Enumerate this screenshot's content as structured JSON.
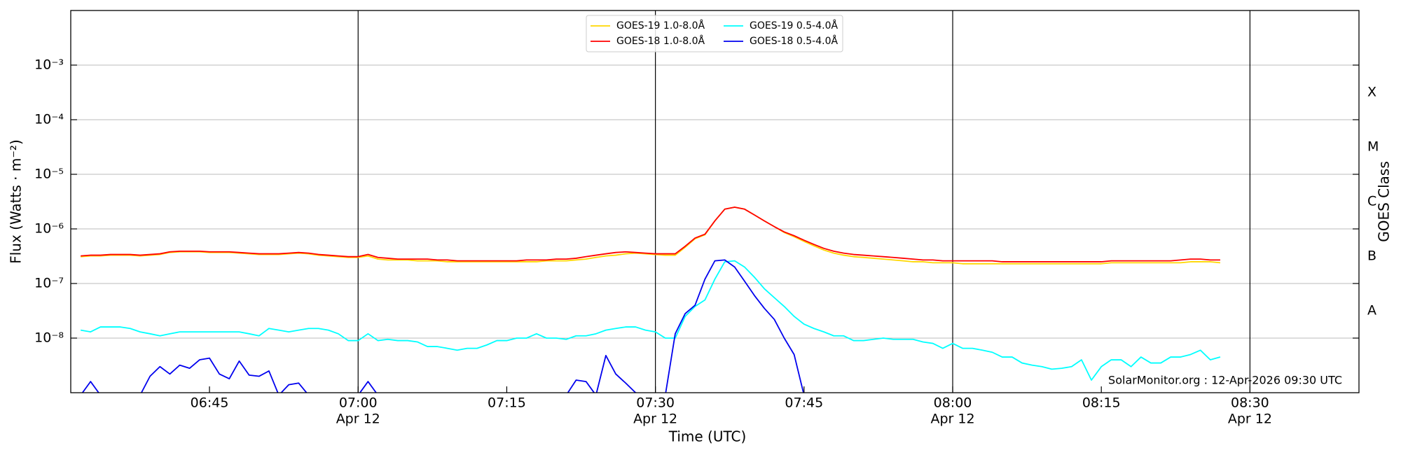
{
  "chart_data": {
    "type": "line",
    "xlabel": "Time (UTC)",
    "ylabel": "Flux (Watts · m⁻²)",
    "y2label": "GOES Class",
    "annotation": "SolarMonitor.org : 12-Apr-2026 09:30 UTC",
    "yscale": "log",
    "grid": true,
    "legend": "upper center",
    "xlim": [
      "06:31",
      "08:41"
    ],
    "xticks": [
      {
        "value": "06:45",
        "label": "06:45"
      },
      {
        "value": "07:00",
        "label": "07:00",
        "sublabel": "Apr 12"
      },
      {
        "value": "07:15",
        "label": "07:15"
      },
      {
        "value": "07:30",
        "label": "07:30",
        "sublabel": "Apr 12"
      },
      {
        "value": "07:45",
        "label": "07:45"
      },
      {
        "value": "08:00",
        "label": "08:00",
        "sublabel": "Apr 12"
      },
      {
        "value": "08:15",
        "label": "08:15"
      },
      {
        "value": "08:30",
        "label": "08:30",
        "sublabel": "Apr 12"
      }
    ],
    "ylim": [
      1e-09,
      0.01
    ],
    "yticks": [
      {
        "value": 1e-08,
        "label": "10⁻⁸"
      },
      {
        "value": 1e-07,
        "label": "10⁻⁷"
      },
      {
        "value": 1e-06,
        "label": "10⁻⁶"
      },
      {
        "value": 1e-05,
        "label": "10⁻⁵"
      },
      {
        "value": 0.0001,
        "label": "10⁻⁴"
      },
      {
        "value": 0.001,
        "label": "10⁻³"
      }
    ],
    "y2lim": [
      1e-09,
      0.01
    ],
    "y2ticks": [
      {
        "value": 3.16e-08,
        "label": "A"
      },
      {
        "value": 3.16e-07,
        "label": "B"
      },
      {
        "value": 3.16e-06,
        "label": "C"
      },
      {
        "value": 3.16e-05,
        "label": "M"
      },
      {
        "value": 0.000316,
        "label": "X"
      }
    ],
    "x": [
      "06:32",
      "06:33",
      "06:34",
      "06:35",
      "06:36",
      "06:37",
      "06:38",
      "06:39",
      "06:40",
      "06:41",
      "06:42",
      "06:43",
      "06:44",
      "06:45",
      "06:46",
      "06:47",
      "06:48",
      "06:49",
      "06:50",
      "06:51",
      "06:52",
      "06:53",
      "06:54",
      "06:55",
      "06:56",
      "06:57",
      "06:58",
      "06:59",
      "07:00",
      "07:01",
      "07:02",
      "07:03",
      "07:04",
      "07:05",
      "07:06",
      "07:07",
      "07:08",
      "07:09",
      "07:10",
      "07:11",
      "07:12",
      "07:13",
      "07:14",
      "07:15",
      "07:16",
      "07:17",
      "07:18",
      "07:19",
      "07:20",
      "07:21",
      "07:22",
      "07:23",
      "07:24",
      "07:25",
      "07:26",
      "07:27",
      "07:28",
      "07:29",
      "07:30",
      "07:31",
      "07:32",
      "07:33",
      "07:34",
      "07:35",
      "07:36",
      "07:37",
      "07:38",
      "07:39",
      "07:40",
      "07:41",
      "07:42",
      "07:43",
      "07:44",
      "07:45",
      "07:46",
      "07:47",
      "07:48",
      "07:49",
      "07:50",
      "07:51",
      "07:52",
      "07:53",
      "07:54",
      "07:55",
      "07:56",
      "07:57",
      "07:58",
      "07:59",
      "08:00",
      "08:01",
      "08:02",
      "08:03",
      "08:04",
      "08:05",
      "08:06",
      "08:07",
      "08:08",
      "08:09",
      "08:10",
      "08:11",
      "08:12",
      "08:13",
      "08:14",
      "08:15",
      "08:16",
      "08:17",
      "08:18",
      "08:19",
      "08:20",
      "08:21",
      "08:22",
      "08:23",
      "08:24",
      "08:25",
      "08:26",
      "08:27"
    ],
    "series": [
      {
        "name": "GOES-19 1.0-8.0Å",
        "color": "#ffd700",
        "values": [
          3.1e-07,
          3.2e-07,
          3.2e-07,
          3.3e-07,
          3.3e-07,
          3.3e-07,
          3.2e-07,
          3.3e-07,
          3.4e-07,
          3.7e-07,
          3.8e-07,
          3.8e-07,
          3.8e-07,
          3.7e-07,
          3.7e-07,
          3.7e-07,
          3.6e-07,
          3.5e-07,
          3.4e-07,
          3.4e-07,
          3.4e-07,
          3.5e-07,
          3.6e-07,
          3.5e-07,
          3.3e-07,
          3.2e-07,
          3.1e-07,
          3e-07,
          3e-07,
          3.2e-07,
          2.8e-07,
          2.7e-07,
          2.7e-07,
          2.7e-07,
          2.6e-07,
          2.6e-07,
          2.6e-07,
          2.5e-07,
          2.5e-07,
          2.5e-07,
          2.5e-07,
          2.5e-07,
          2.5e-07,
          2.5e-07,
          2.5e-07,
          2.5e-07,
          2.5e-07,
          2.6e-07,
          2.6e-07,
          2.6e-07,
          2.7e-07,
          2.8e-07,
          3e-07,
          3.2e-07,
          3.3e-07,
          3.5e-07,
          3.6e-07,
          3.5e-07,
          3.4e-07,
          3.3e-07,
          3.3e-07,
          4.6e-07,
          6.6e-07,
          7.8e-07,
          1.4e-06,
          2.3e-06,
          2.5e-06,
          2.3e-06,
          1.8e-06,
          1.4e-06,
          1.1e-06,
          8.6e-07,
          7.2e-07,
          5.9e-07,
          4.9e-07,
          4.1e-07,
          3.6e-07,
          3.3e-07,
          3.1e-07,
          3e-07,
          2.9e-07,
          2.8e-07,
          2.7e-07,
          2.6e-07,
          2.5e-07,
          2.5e-07,
          2.4e-07,
          2.4e-07,
          2.4e-07,
          2.3e-07,
          2.3e-07,
          2.3e-07,
          2.3e-07,
          2.3e-07,
          2.3e-07,
          2.3e-07,
          2.3e-07,
          2.3e-07,
          2.3e-07,
          2.3e-07,
          2.3e-07,
          2.3e-07,
          2.3e-07,
          2.3e-07,
          2.4e-07,
          2.4e-07,
          2.4e-07,
          2.4e-07,
          2.4e-07,
          2.4e-07,
          2.4e-07,
          2.4e-07,
          2.5e-07,
          2.5e-07,
          2.5e-07,
          2.4e-07
        ]
      },
      {
        "name": "GOES-18 1.0-8.0Å",
        "color": "#ff0000",
        "values": [
          3.2e-07,
          3.3e-07,
          3.3e-07,
          3.4e-07,
          3.4e-07,
          3.4e-07,
          3.3e-07,
          3.4e-07,
          3.5e-07,
          3.8e-07,
          3.9e-07,
          3.9e-07,
          3.9e-07,
          3.8e-07,
          3.8e-07,
          3.8e-07,
          3.7e-07,
          3.6e-07,
          3.5e-07,
          3.5e-07,
          3.5e-07,
          3.6e-07,
          3.7e-07,
          3.6e-07,
          3.4e-07,
          3.3e-07,
          3.2e-07,
          3.1e-07,
          3.1e-07,
          3.4e-07,
          3e-07,
          2.9e-07,
          2.8e-07,
          2.8e-07,
          2.8e-07,
          2.8e-07,
          2.7e-07,
          2.7e-07,
          2.6e-07,
          2.6e-07,
          2.6e-07,
          2.6e-07,
          2.6e-07,
          2.6e-07,
          2.6e-07,
          2.7e-07,
          2.7e-07,
          2.7e-07,
          2.8e-07,
          2.8e-07,
          2.9e-07,
          3.1e-07,
          3.3e-07,
          3.5e-07,
          3.7e-07,
          3.8e-07,
          3.7e-07,
          3.6e-07,
          3.5e-07,
          3.5e-07,
          3.5e-07,
          4.8e-07,
          6.8e-07,
          8e-07,
          1.4e-06,
          2.3e-06,
          2.5e-06,
          2.3e-06,
          1.8e-06,
          1.4e-06,
          1.1e-06,
          8.8e-07,
          7.5e-07,
          6.2e-07,
          5.2e-07,
          4.4e-07,
          3.9e-07,
          3.6e-07,
          3.4e-07,
          3.3e-07,
          3.2e-07,
          3.1e-07,
          3e-07,
          2.9e-07,
          2.8e-07,
          2.7e-07,
          2.7e-07,
          2.6e-07,
          2.6e-07,
          2.6e-07,
          2.6e-07,
          2.6e-07,
          2.6e-07,
          2.5e-07,
          2.5e-07,
          2.5e-07,
          2.5e-07,
          2.5e-07,
          2.5e-07,
          2.5e-07,
          2.5e-07,
          2.5e-07,
          2.5e-07,
          2.5e-07,
          2.6e-07,
          2.6e-07,
          2.6e-07,
          2.6e-07,
          2.6e-07,
          2.6e-07,
          2.6e-07,
          2.7e-07,
          2.8e-07,
          2.8e-07,
          2.7e-07,
          2.7e-07
        ]
      },
      {
        "name": "GOES-19 0.5-4.0Å",
        "color": "#00ffff",
        "values": [
          1.4e-08,
          1.3e-08,
          1.6e-08,
          1.6e-08,
          1.6e-08,
          1.5e-08,
          1.3e-08,
          1.2e-08,
          1.1e-08,
          1.2e-08,
          1.3e-08,
          1.3e-08,
          1.3e-08,
          1.3e-08,
          1.3e-08,
          1.3e-08,
          1.3e-08,
          1.2e-08,
          1.1e-08,
          1.5e-08,
          1.4e-08,
          1.3e-08,
          1.4e-08,
          1.5e-08,
          1.5e-08,
          1.4e-08,
          1.2e-08,
          9e-09,
          9e-09,
          1.2e-08,
          9e-09,
          9.5e-09,
          9e-09,
          9e-09,
          8.5e-09,
          7e-09,
          7e-09,
          6.5e-09,
          6e-09,
          6.5e-09,
          6.5e-09,
          7.5e-09,
          9e-09,
          9e-09,
          1e-08,
          1e-08,
          1.2e-08,
          1e-08,
          1e-08,
          9.5e-09,
          1.1e-08,
          1.1e-08,
          1.2e-08,
          1.4e-08,
          1.5e-08,
          1.6e-08,
          1.6e-08,
          1.4e-08,
          1.3e-08,
          1e-08,
          1e-08,
          2.5e-08,
          3.8e-08,
          5e-08,
          1.2e-07,
          2.5e-07,
          2.6e-07,
          2e-07,
          1.3e-07,
          8e-08,
          5.5e-08,
          3.8e-08,
          2.5e-08,
          1.8e-08,
          1.5e-08,
          1.3e-08,
          1.1e-08,
          1.1e-08,
          9e-09,
          9e-09,
          9.5e-09,
          1e-08,
          9.5e-09,
          9.5e-09,
          9.5e-09,
          8.5e-09,
          8e-09,
          6.5e-09,
          8e-09,
          6.5e-09,
          6.5e-09,
          6e-09,
          5.5e-09,
          4.5e-09,
          4.5e-09,
          3.5e-09,
          3.2e-09,
          3e-09,
          2.7e-09,
          2.8e-09,
          3e-09,
          4e-09,
          1.7e-09,
          3e-09,
          4e-09,
          4e-09,
          3e-09,
          4.5e-09,
          3.5e-09,
          3.5e-09,
          4.5e-09,
          4.5e-09,
          5e-09,
          6e-09,
          4e-09,
          4.5e-09
        ]
      },
      {
        "name": "GOES-18 0.5-4.0Å",
        "color": "#0000ee",
        "values": [
          9e-10,
          1.6e-09,
          9e-10,
          9e-10,
          9e-10,
          9e-10,
          9e-10,
          2e-09,
          3e-09,
          2.2e-09,
          3.2e-09,
          2.8e-09,
          4e-09,
          4.3e-09,
          2.2e-09,
          1.8e-09,
          3.8e-09,
          2.1e-09,
          2e-09,
          2.5e-09,
          9e-10,
          1.4e-09,
          1.5e-09,
          9e-10,
          9e-10,
          9e-10,
          9e-10,
          9e-10,
          9e-10,
          1.6e-09,
          9e-10,
          9e-10,
          9e-10,
          9e-10,
          9e-10,
          9e-10,
          9e-10,
          9e-10,
          9e-10,
          9e-10,
          9e-10,
          9e-10,
          9e-10,
          9e-10,
          9e-10,
          9e-10,
          9e-10,
          9e-10,
          9e-10,
          9e-10,
          1.7e-09,
          1.6e-09,
          9e-10,
          4.8e-09,
          2.2e-09,
          1.5e-09,
          1e-09,
          9e-10,
          9e-10,
          9e-10,
          1.2e-08,
          2.8e-08,
          4e-08,
          1.2e-07,
          2.6e-07,
          2.7e-07,
          2e-07,
          1.1e-07,
          6e-08,
          3.5e-08,
          2.2e-08,
          1e-08,
          5e-09,
          9e-10,
          9e-10,
          9e-10,
          9e-10,
          9e-10,
          9e-10,
          9e-10,
          9e-10,
          9e-10,
          9e-10,
          9e-10,
          9e-10,
          9e-10,
          9e-10,
          9e-10,
          9e-10,
          9e-10,
          9e-10,
          9e-10,
          9e-10,
          9e-10,
          9e-10,
          9e-10,
          9e-10,
          9e-10,
          9e-10,
          9e-10,
          9e-10,
          9e-10,
          9e-10,
          9e-10,
          9e-10,
          9e-10,
          9e-10,
          9e-10,
          9e-10,
          9e-10,
          9e-10,
          9e-10,
          9e-10,
          9e-10,
          9e-10,
          9e-10
        ]
      }
    ]
  }
}
